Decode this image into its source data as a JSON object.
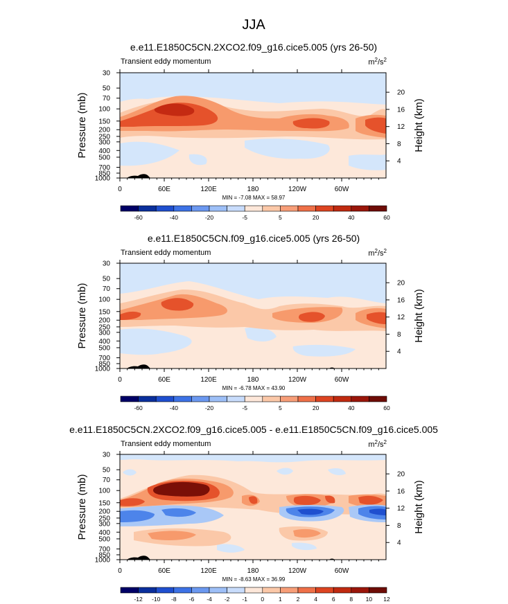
{
  "figure": {
    "season": "JJA"
  },
  "chart_data": [
    {
      "type": "heatmap",
      "title": "e.e11.E1850C5CN.2XCO2.f09_g16.cice5.005 (yrs 26-50)",
      "left_label": "Transient eddy momentum",
      "units": {
        "base": "m",
        "exp1": "2",
        "mid": "/s",
        "exp2": "2"
      },
      "ylabel": "Pressure (mb)",
      "y2label": "Height (km)",
      "xticks": [
        "0",
        "60E",
        "120E",
        "180",
        "120W",
        "60W"
      ],
      "yticks": [
        "30",
        "50",
        "70",
        "100",
        "150",
        "200",
        "250",
        "300",
        "400",
        "500",
        "700",
        "850",
        "1000"
      ],
      "y2ticks": [
        "20",
        "16",
        "12",
        "8",
        "4"
      ],
      "stats": "MIN = -7.08  MAX = 58.97",
      "colorbar_labels": [
        "-60",
        "-40",
        "-20",
        "-5",
        "5",
        "20",
        "40",
        "60"
      ],
      "min": -7.08,
      "max": 58.97
    },
    {
      "type": "heatmap",
      "title": "e.e11.E1850C5CN.f09_g16.cice5.005 (yrs 26-50)",
      "left_label": "Transient eddy momentum",
      "units": {
        "base": "m",
        "exp1": "2",
        "mid": "/s",
        "exp2": "2"
      },
      "ylabel": "Pressure (mb)",
      "y2label": "Height (km)",
      "xticks": [
        "0",
        "60E",
        "120E",
        "180",
        "120W",
        "60W"
      ],
      "yticks": [
        "30",
        "50",
        "70",
        "100",
        "150",
        "200",
        "250",
        "300",
        "400",
        "500",
        "700",
        "850",
        "1000"
      ],
      "y2ticks": [
        "20",
        "16",
        "12",
        "8",
        "4"
      ],
      "stats": "MIN = -6.78  MAX = 43.90",
      "colorbar_labels": [
        "-60",
        "-40",
        "-20",
        "-5",
        "5",
        "20",
        "40",
        "60"
      ],
      "min": -6.78,
      "max": 43.9
    },
    {
      "type": "heatmap",
      "title": "e.e11.E1850C5CN.2XCO2.f09_g16.cice5.005 - e.e11.E1850C5CN.f09_g16.cice5.005",
      "left_label": "Transient eddy momentum",
      "units": {
        "base": "m",
        "exp1": "2",
        "mid": "/s",
        "exp2": "2"
      },
      "ylabel": "Pressure (mb)",
      "y2label": "Height (km)",
      "xticks": [
        "0",
        "60E",
        "120E",
        "180",
        "120W",
        "60W"
      ],
      "yticks": [
        "30",
        "50",
        "70",
        "100",
        "150",
        "200",
        "250",
        "300",
        "400",
        "500",
        "700",
        "850",
        "1000"
      ],
      "y2ticks": [
        "20",
        "16",
        "12",
        "8",
        "4"
      ],
      "stats": "MIN = -8.63  MAX = 36.99",
      "colorbar_labels": [
        "-12",
        "-10",
        "-8",
        "-6",
        "-4",
        "-2",
        "-1",
        "0",
        "1",
        "2",
        "4",
        "6",
        "8",
        "10",
        "12"
      ],
      "min": -8.63,
      "max": 36.99
    }
  ],
  "colors": {
    "colorbar": [
      "#000066",
      "#0a2f9c",
      "#1f4fcf",
      "#3d72e6",
      "#6b98f0",
      "#9dbff7",
      "#c8dcfb",
      "#fde7d9",
      "#fbc8a8",
      "#f79e78",
      "#ef7048",
      "#dd4421",
      "#c02a10",
      "#9a160a",
      "#6e0c06"
    ],
    "background_pos": "#fde8da",
    "background_neg": "#d4e6fb",
    "orange_light": "#fbc8a8",
    "orange": "#f79a6c",
    "red": "#e5522b",
    "red_deep": "#c42a12",
    "dark_red": "#7a0f07",
    "blue_light": "#a9c8f7",
    "blue": "#4d84ea",
    "blue_deep": "#1f4fcf",
    "terrain": "#000000"
  }
}
